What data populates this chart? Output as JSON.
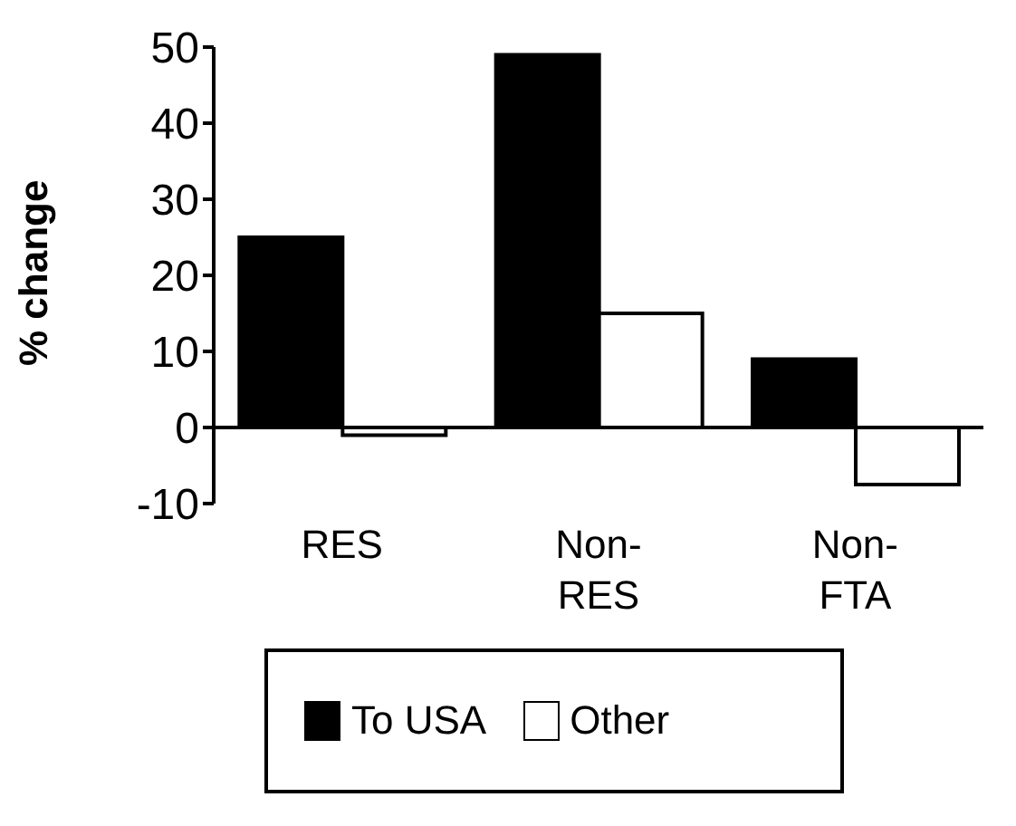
{
  "chart_data": {
    "type": "bar",
    "ylabel": "% change",
    "categories": [
      "RES",
      "Non-\nRES",
      "Non-\nFTA"
    ],
    "series": [
      {
        "name": "To USA",
        "color": "#000000",
        "values": [
          25,
          49,
          9
        ]
      },
      {
        "name": "Other",
        "color": "#ffffff",
        "values": [
          -1,
          15,
          -7.5
        ]
      }
    ],
    "ylim": [
      -10,
      50
    ],
    "yticks": [
      -10,
      0,
      10,
      20,
      30,
      40,
      50
    ],
    "grid": false,
    "legend": "bottom"
  }
}
